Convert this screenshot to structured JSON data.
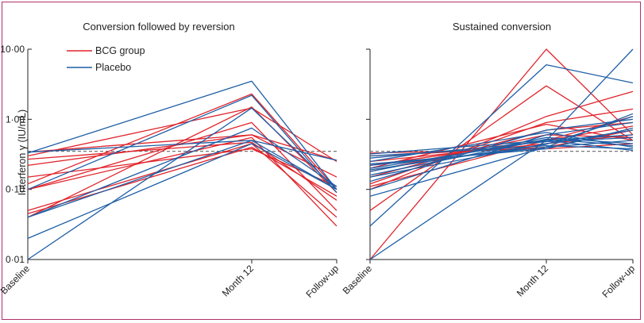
{
  "colors": {
    "bcg": "#e0242b",
    "placebo": "#1f5fa6",
    "threshold": "#777777",
    "frame": "#b0306a"
  },
  "legend": {
    "bcg": "BCG group",
    "placebo": "Placebo"
  },
  "chart_data": [
    {
      "type": "line",
      "title": "Conversion followed by reversion",
      "ylabel": "Interferon γ (IU/mL)",
      "yscale": "log",
      "ylim": [
        0.01,
        10
      ],
      "yticks": [
        0.01,
        0.1,
        1,
        10
      ],
      "ytick_labels": [
        "0·01",
        "0·10",
        "1·00",
        "10·00"
      ],
      "categories": [
        "Baseline",
        "Month 12",
        "Follow-up"
      ],
      "threshold": 0.35,
      "legend_position": "top-left",
      "series": [
        {
          "group": "bcg",
          "values": [
            0.34,
            0.6,
            0.26
          ]
        },
        {
          "group": "bcg",
          "values": [
            0.3,
            1.45,
            0.25
          ]
        },
        {
          "group": "bcg",
          "values": [
            0.27,
            0.47,
            0.07
          ]
        },
        {
          "group": "bcg",
          "values": [
            0.22,
            0.6,
            0.15
          ]
        },
        {
          "group": "bcg",
          "values": [
            0.15,
            0.38,
            0.11
          ]
        },
        {
          "group": "bcg",
          "values": [
            0.12,
            2.3,
            0.1
          ]
        },
        {
          "group": "bcg",
          "values": [
            0.1,
            0.9,
            0.05
          ]
        },
        {
          "group": "bcg",
          "values": [
            0.1,
            0.55,
            0.03
          ]
        },
        {
          "group": "bcg",
          "values": [
            0.05,
            0.45,
            0.04
          ]
        },
        {
          "group": "bcg",
          "values": [
            0.045,
            0.4,
            0.08
          ]
        },
        {
          "group": "bcg",
          "values": [
            0.04,
            1.5,
            0.09
          ]
        },
        {
          "group": "placebo",
          "values": [
            0.34,
            0.5,
            0.1
          ]
        },
        {
          "group": "placebo",
          "values": [
            0.33,
            3.5,
            0.1
          ]
        },
        {
          "group": "placebo",
          "values": [
            0.1,
            2.2,
            0.09
          ]
        },
        {
          "group": "placebo",
          "values": [
            0.04,
            0.5,
            0.26
          ]
        },
        {
          "group": "placebo",
          "values": [
            0.04,
            0.75,
            0.11
          ]
        },
        {
          "group": "placebo",
          "values": [
            0.02,
            0.45,
            0.1
          ]
        },
        {
          "group": "placebo",
          "values": [
            0.01,
            1.45,
            0.1
          ]
        }
      ]
    },
    {
      "type": "line",
      "title": "Sustained conversion",
      "yscale": "log",
      "ylim": [
        0.01,
        10
      ],
      "yticks": [
        0.01,
        0.1,
        1,
        10
      ],
      "categories": [
        "Baseline",
        "Month 12",
        "Follow-up"
      ],
      "threshold": 0.35,
      "series": [
        {
          "group": "bcg",
          "values": [
            0.01,
            10,
            0.6
          ]
        },
        {
          "group": "bcg",
          "values": [
            0.05,
            3,
            0.5
          ]
        },
        {
          "group": "bcg",
          "values": [
            0.1,
            1.1,
            2.5
          ]
        },
        {
          "group": "bcg",
          "values": [
            0.12,
            0.9,
            1.4
          ]
        },
        {
          "group": "bcg",
          "values": [
            0.15,
            0.7,
            0.9
          ]
        },
        {
          "group": "bcg",
          "values": [
            0.18,
            0.6,
            0.55
          ]
        },
        {
          "group": "bcg",
          "values": [
            0.22,
            0.5,
            0.8
          ]
        },
        {
          "group": "bcg",
          "values": [
            0.25,
            0.45,
            0.6
          ]
        },
        {
          "group": "bcg",
          "values": [
            0.3,
            0.4,
            0.7
          ]
        },
        {
          "group": "bcg",
          "values": [
            0.33,
            0.38,
            0.45
          ]
        },
        {
          "group": "bcg",
          "values": [
            0.2,
            0.85,
            0.5
          ]
        },
        {
          "group": "bcg",
          "values": [
            0.11,
            0.5,
            1.1
          ]
        },
        {
          "group": "placebo",
          "values": [
            0.01,
            0.5,
            10
          ]
        },
        {
          "group": "placebo",
          "values": [
            0.03,
            6,
            3.3
          ]
        },
        {
          "group": "placebo",
          "values": [
            0.08,
            0.4,
            1.2
          ]
        },
        {
          "group": "placebo",
          "values": [
            0.1,
            0.6,
            0.9
          ]
        },
        {
          "group": "placebo",
          "values": [
            0.13,
            0.7,
            1.0
          ]
        },
        {
          "group": "placebo",
          "values": [
            0.15,
            0.45,
            0.7
          ]
        },
        {
          "group": "placebo",
          "values": [
            0.18,
            0.55,
            0.45
          ]
        },
        {
          "group": "placebo",
          "values": [
            0.2,
            0.5,
            0.6
          ]
        },
        {
          "group": "placebo",
          "values": [
            0.22,
            0.4,
            0.5
          ]
        },
        {
          "group": "placebo",
          "values": [
            0.25,
            0.65,
            0.4
          ]
        },
        {
          "group": "placebo",
          "values": [
            0.28,
            0.48,
            0.55
          ]
        },
        {
          "group": "placebo",
          "values": [
            0.3,
            0.42,
            0.38
          ]
        },
        {
          "group": "placebo",
          "values": [
            0.32,
            0.5,
            0.36
          ]
        },
        {
          "group": "placebo",
          "values": [
            0.23,
            0.38,
            0.75
          ]
        },
        {
          "group": "placebo",
          "values": [
            0.16,
            0.52,
            0.42
          ]
        },
        {
          "group": "placebo",
          "values": [
            0.19,
            0.44,
            1.1
          ]
        }
      ]
    }
  ]
}
